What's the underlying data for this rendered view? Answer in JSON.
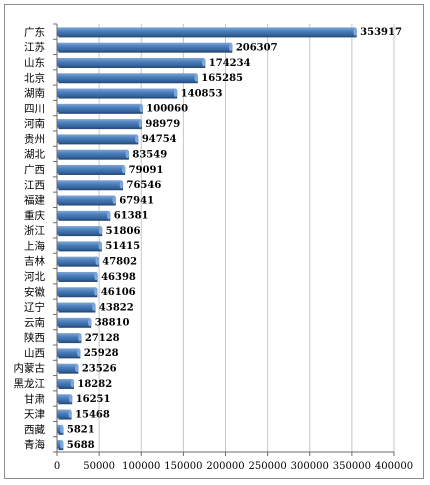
{
  "chart_data": {
    "type": "bar",
    "orientation": "horizontal",
    "title": "",
    "xlabel": "",
    "ylabel": "",
    "xlim": [
      0,
      400000
    ],
    "xticks": [
      0,
      50000,
      100000,
      150000,
      200000,
      250000,
      300000,
      350000,
      400000
    ],
    "grid": "vertical",
    "legend": "none",
    "bar_color": "#4a7ebb",
    "categories": [
      "广东",
      "江苏",
      "山东",
      "北京",
      "湖南",
      "四川",
      "河南",
      "贵州",
      "湖北",
      "广西",
      "江西",
      "福建",
      "重庆",
      "浙江",
      "上海",
      "吉林",
      "河北",
      "安徽",
      "辽宁",
      "云南",
      "陕西",
      "山西",
      "内蒙古",
      "黑龙江",
      "甘肃",
      "天津",
      "西藏",
      "青海"
    ],
    "values": [
      353917,
      206307,
      174234,
      165285,
      140853,
      100060,
      98979,
      94754,
      83549,
      79091,
      76546,
      67941,
      61381,
      51806,
      51415,
      47802,
      46398,
      46106,
      43822,
      38810,
      27128,
      25928,
      23526,
      18282,
      16251,
      15468,
      5821,
      5688
    ]
  }
}
